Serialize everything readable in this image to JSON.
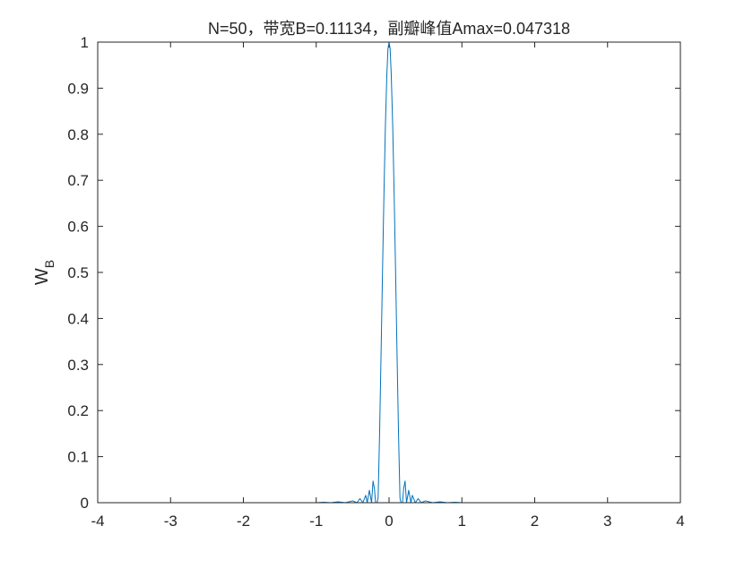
{
  "chart_data": {
    "type": "line",
    "title": "N=50，带宽B=0.11134，副瓣峰值Amax=0.047318",
    "xlabel": "",
    "ylabel": "W",
    "ylabel_subscript": "B",
    "xlim": [
      -4,
      4
    ],
    "ylim": [
      0,
      1
    ],
    "xticks": [
      -4,
      -3,
      -2,
      -1,
      0,
      1,
      2,
      3,
      4
    ],
    "yticks": [
      0,
      0.1,
      0.2,
      0.3,
      0.4,
      0.5,
      0.6,
      0.7,
      0.8,
      0.9,
      1
    ],
    "grid": false,
    "box": true,
    "line_color": "#0072BD",
    "series": [
      {
        "x": [
          -2.6,
          -1.2,
          -1.0,
          -0.9,
          -0.8,
          -0.7,
          -0.6,
          -0.5,
          -0.44,
          -0.4,
          -0.36,
          -0.32,
          -0.3,
          -0.27,
          -0.24,
          -0.22,
          -0.2,
          -0.185,
          -0.165,
          -0.15,
          -0.13,
          -0.11,
          -0.09,
          -0.07,
          -0.05,
          -0.03,
          -0.015,
          0,
          0.015,
          0.03,
          0.05,
          0.07,
          0.09,
          0.11,
          0.13,
          0.15,
          0.165,
          0.185,
          0.2,
          0.22,
          0.24,
          0.27,
          0.3,
          0.32,
          0.36,
          0.4,
          0.44,
          0.5,
          0.6,
          0.7,
          0.8,
          0.9,
          1.0,
          1.2,
          2.6
        ],
        "y": [
          0,
          0,
          0,
          0.001,
          0,
          0.002,
          0,
          0.004,
          0,
          0.009,
          0,
          0.016,
          0,
          0.027,
          0,
          0.047,
          0.03,
          0,
          0,
          0.01,
          0.15,
          0.32,
          0.5,
          0.67,
          0.82,
          0.93,
          0.985,
          1,
          0.985,
          0.93,
          0.82,
          0.67,
          0.5,
          0.32,
          0.15,
          0.01,
          0,
          0,
          0.03,
          0.047,
          0,
          0.027,
          0,
          0.016,
          0,
          0.009,
          0,
          0.004,
          0,
          0.002,
          0,
          0.001,
          0,
          0,
          0
        ]
      }
    ]
  }
}
